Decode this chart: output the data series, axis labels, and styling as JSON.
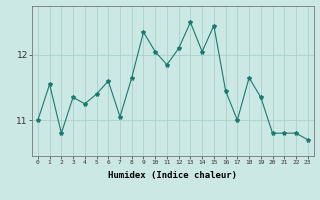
{
  "x": [
    0,
    1,
    2,
    3,
    4,
    5,
    6,
    7,
    8,
    9,
    10,
    11,
    12,
    13,
    14,
    15,
    16,
    17,
    18,
    19,
    20,
    21,
    22,
    23
  ],
  "y": [
    11.0,
    11.55,
    10.8,
    11.35,
    11.25,
    11.4,
    11.6,
    11.05,
    11.65,
    12.35,
    12.05,
    11.85,
    12.1,
    12.5,
    12.05,
    12.45,
    11.45,
    11.0,
    11.65,
    11.35,
    10.8,
    10.8,
    10.8,
    10.7
  ],
  "line_color": "#1a7a6e",
  "marker": "*",
  "marker_size": 3,
  "bg_color": "#cce8e4",
  "grid_color": "#aacfcc",
  "xlabel": "Humidex (Indice chaleur)",
  "yticks": [
    11,
    12
  ],
  "ylim": [
    10.45,
    12.75
  ],
  "xlim": [
    -0.5,
    23.5
  ],
  "xtick_labels": [
    "0",
    "1",
    "2",
    "3",
    "4",
    "5",
    "6",
    "7",
    "8",
    "9",
    "10",
    "11",
    "12",
    "13",
    "14",
    "15",
    "16",
    "17",
    "18",
    "19",
    "20",
    "21",
    "22",
    "23"
  ]
}
